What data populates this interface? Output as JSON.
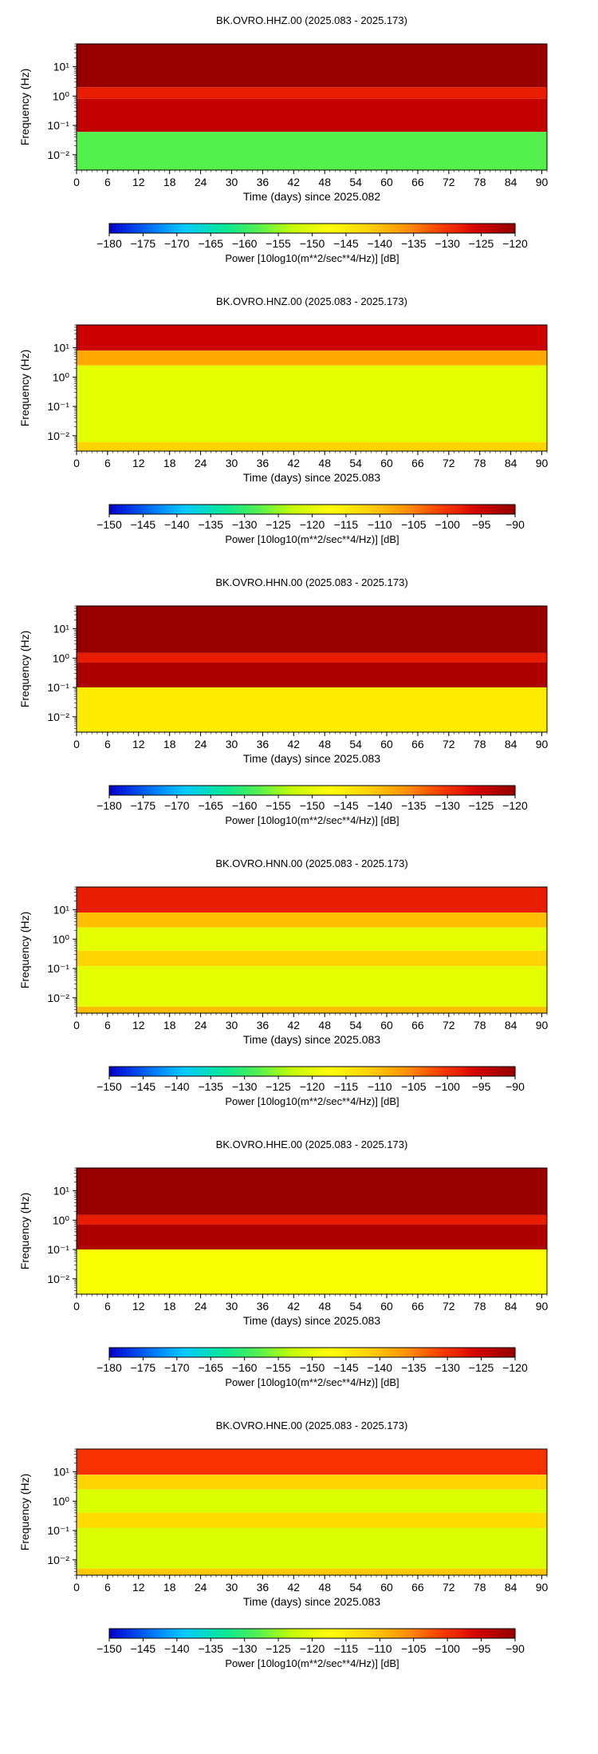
{
  "chart_data": [
    {
      "type": "heatmap",
      "title": "BK.OVRO.HHZ.00 (2025.083 - 2025.173)",
      "xlabel": "Time (days) since 2025.082",
      "ylabel": "Frequency (Hz)",
      "x_ticks": [
        0,
        6,
        12,
        18,
        24,
        30,
        36,
        42,
        48,
        54,
        60,
        66,
        72,
        78,
        84,
        90
      ],
      "xlim": [
        0,
        91
      ],
      "y_scale": "log",
      "ylim": [
        0.003,
        60
      ],
      "y_ticks": [
        {
          "value": 0.01,
          "label": "10⁻²"
        },
        {
          "value": 0.1,
          "label": "10⁻¹"
        },
        {
          "value": 1,
          "label": "10⁰"
        },
        {
          "value": 10,
          "label": "10¹"
        }
      ],
      "colorbar": {
        "label": "Power [10log10(m**2/sec**4/Hz)] [dB]",
        "min": -180,
        "max": -120,
        "ticks": [
          -180,
          -175,
          -170,
          -165,
          -160,
          -155,
          -150,
          -145,
          -140,
          -135,
          -130,
          -125,
          -120
        ]
      },
      "colormap": [
        "#0000c8",
        "#0064ff",
        "#00c8ff",
        "#00e6a0",
        "#50f050",
        "#c8ff00",
        "#ffff00",
        "#ffd200",
        "#ff9600",
        "#ff3c00",
        "#d20000",
        "#960000"
      ],
      "bands": [
        {
          "f_from": 60,
          "f_to": 2.0,
          "value": -120
        },
        {
          "f_from": 2.0,
          "f_to": 0.8,
          "value": -128
        },
        {
          "f_from": 0.8,
          "f_to": 0.06,
          "value": -124
        },
        {
          "f_from": 0.06,
          "f_to": 0.003,
          "value": -158
        }
      ]
    },
    {
      "type": "heatmap",
      "title": "BK.OVRO.HNZ.00 (2025.083 - 2025.173)",
      "xlabel": "Time (days) since 2025.083",
      "ylabel": "Frequency (Hz)",
      "x_ticks": [
        0,
        6,
        12,
        18,
        24,
        30,
        36,
        42,
        48,
        54,
        60,
        66,
        72,
        78,
        84,
        90
      ],
      "xlim": [
        0,
        91
      ],
      "y_scale": "log",
      "ylim": [
        0.003,
        60
      ],
      "y_ticks": [
        {
          "value": 0.01,
          "label": "10⁻²"
        },
        {
          "value": 0.1,
          "label": "10⁻¹"
        },
        {
          "value": 1,
          "label": "10⁰"
        },
        {
          "value": 10,
          "label": "10¹"
        }
      ],
      "colorbar": {
        "label": "Power [10log10(m**2/sec**4/Hz)] [dB]",
        "min": -150,
        "max": -90,
        "ticks": [
          -150,
          -145,
          -140,
          -135,
          -130,
          -125,
          -120,
          -115,
          -110,
          -105,
          -100,
          -95,
          -90
        ]
      },
      "colormap": [
        "#0000c8",
        "#0064ff",
        "#00c8ff",
        "#00e6a0",
        "#50f050",
        "#c8ff00",
        "#ffff00",
        "#ffd200",
        "#ff9600",
        "#ff3c00",
        "#d20000",
        "#960000"
      ],
      "bands": [
        {
          "f_from": 60,
          "f_to": 8,
          "value": -95
        },
        {
          "f_from": 8,
          "f_to": 2.5,
          "value": -108
        },
        {
          "f_from": 2.5,
          "f_to": 0.006,
          "value": -120
        },
        {
          "f_from": 0.006,
          "f_to": 0.003,
          "value": -112
        }
      ]
    },
    {
      "type": "heatmap",
      "title": "BK.OVRO.HHN.00 (2025.083 - 2025.173)",
      "xlabel": "Time (days) since 2025.083",
      "ylabel": "Frequency (Hz)",
      "x_ticks": [
        0,
        6,
        12,
        18,
        24,
        30,
        36,
        42,
        48,
        54,
        60,
        66,
        72,
        78,
        84,
        90
      ],
      "xlim": [
        0,
        91
      ],
      "y_scale": "log",
      "ylim": [
        0.003,
        60
      ],
      "y_ticks": [
        {
          "value": 0.01,
          "label": "10⁻²"
        },
        {
          "value": 0.1,
          "label": "10⁻¹"
        },
        {
          "value": 1,
          "label": "10⁰"
        },
        {
          "value": 10,
          "label": "10¹"
        }
      ],
      "colorbar": {
        "label": "Power [10log10(m**2/sec**4/Hz)] [dB]",
        "min": -180,
        "max": -120,
        "ticks": [
          -180,
          -175,
          -170,
          -165,
          -160,
          -155,
          -150,
          -145,
          -140,
          -135,
          -130,
          -125,
          -120
        ]
      },
      "colormap": [
        "#0000c8",
        "#0064ff",
        "#00c8ff",
        "#00e6a0",
        "#50f050",
        "#c8ff00",
        "#ffff00",
        "#ffd200",
        "#ff9600",
        "#ff3c00",
        "#d20000",
        "#960000"
      ],
      "bands": [
        {
          "f_from": 60,
          "f_to": 1.5,
          "value": -120
        },
        {
          "f_from": 1.5,
          "f_to": 0.7,
          "value": -128
        },
        {
          "f_from": 0.7,
          "f_to": 0.1,
          "value": -122
        },
        {
          "f_from": 0.1,
          "f_to": 0.003,
          "value": -145
        }
      ]
    },
    {
      "type": "heatmap",
      "title": "BK.OVRO.HNN.00 (2025.083 - 2025.173)",
      "xlabel": "Time (days) since 2025.083",
      "ylabel": "Frequency (Hz)",
      "x_ticks": [
        0,
        6,
        12,
        18,
        24,
        30,
        36,
        42,
        48,
        54,
        60,
        66,
        72,
        78,
        84,
        90
      ],
      "xlim": [
        0,
        91
      ],
      "y_scale": "log",
      "ylim": [
        0.003,
        60
      ],
      "y_ticks": [
        {
          "value": 0.01,
          "label": "10⁻²"
        },
        {
          "value": 0.1,
          "label": "10⁻¹"
        },
        {
          "value": 1,
          "label": "10⁰"
        },
        {
          "value": 10,
          "label": "10¹"
        }
      ],
      "colorbar": {
        "label": "Power [10log10(m**2/sec**4/Hz)] [dB]",
        "min": -150,
        "max": -90,
        "ticks": [
          -150,
          -145,
          -140,
          -135,
          -130,
          -125,
          -120,
          -115,
          -110,
          -105,
          -100,
          -95,
          -90
        ]
      },
      "colormap": [
        "#0000c8",
        "#0064ff",
        "#00c8ff",
        "#00e6a0",
        "#50f050",
        "#c8ff00",
        "#ffff00",
        "#ffd200",
        "#ff9600",
        "#ff3c00",
        "#d20000",
        "#960000"
      ],
      "bands": [
        {
          "f_from": 60,
          "f_to": 8,
          "value": -98
        },
        {
          "f_from": 8,
          "f_to": 2.5,
          "value": -110
        },
        {
          "f_from": 2.5,
          "f_to": 0.4,
          "value": -120
        },
        {
          "f_from": 0.4,
          "f_to": 0.12,
          "value": -112
        },
        {
          "f_from": 0.12,
          "f_to": 0.005,
          "value": -120
        },
        {
          "f_from": 0.005,
          "f_to": 0.003,
          "value": -110
        }
      ]
    },
    {
      "type": "heatmap",
      "title": "BK.OVRO.HHE.00 (2025.083 - 2025.173)",
      "xlabel": "Time (days) since 2025.083",
      "ylabel": "Frequency (Hz)",
      "x_ticks": [
        0,
        6,
        12,
        18,
        24,
        30,
        36,
        42,
        48,
        54,
        60,
        66,
        72,
        78,
        84,
        90
      ],
      "xlim": [
        0,
        91
      ],
      "y_scale": "log",
      "ylim": [
        0.003,
        60
      ],
      "y_ticks": [
        {
          "value": 0.01,
          "label": "10⁻²"
        },
        {
          "value": 0.1,
          "label": "10⁻¹"
        },
        {
          "value": 1,
          "label": "10⁰"
        },
        {
          "value": 10,
          "label": "10¹"
        }
      ],
      "colorbar": {
        "label": "Power [10log10(m**2/sec**4/Hz)] [dB]",
        "min": -180,
        "max": -120,
        "ticks": [
          -180,
          -175,
          -170,
          -165,
          -160,
          -155,
          -150,
          -145,
          -140,
          -135,
          -130,
          -125,
          -120
        ]
      },
      "colormap": [
        "#0000c8",
        "#0064ff",
        "#00c8ff",
        "#00e6a0",
        "#50f050",
        "#c8ff00",
        "#ffff00",
        "#ffd200",
        "#ff9600",
        "#ff3c00",
        "#d20000",
        "#960000"
      ],
      "bands": [
        {
          "f_from": 60,
          "f_to": 1.5,
          "value": -120
        },
        {
          "f_from": 1.5,
          "f_to": 0.7,
          "value": -128
        },
        {
          "f_from": 0.7,
          "f_to": 0.1,
          "value": -122
        },
        {
          "f_from": 0.1,
          "f_to": 0.003,
          "value": -148
        }
      ]
    },
    {
      "type": "heatmap",
      "title": "BK.OVRO.HNE.00 (2025.083 - 2025.173)",
      "xlabel": "Time (days) since 2025.083",
      "ylabel": "Frequency (Hz)",
      "x_ticks": [
        0,
        6,
        12,
        18,
        24,
        30,
        36,
        42,
        48,
        54,
        60,
        66,
        72,
        78,
        84,
        90
      ],
      "xlim": [
        0,
        91
      ],
      "y_scale": "log",
      "ylim": [
        0.003,
        60
      ],
      "y_ticks": [
        {
          "value": 0.01,
          "label": "10⁻²"
        },
        {
          "value": 0.1,
          "label": "10⁻¹"
        },
        {
          "value": 1,
          "label": "10⁰"
        },
        {
          "value": 10,
          "label": "10¹"
        }
      ],
      "colorbar": {
        "label": "Power [10log10(m**2/sec**4/Hz)] [dB]",
        "min": -150,
        "max": -90,
        "ticks": [
          -150,
          -145,
          -140,
          -135,
          -130,
          -125,
          -120,
          -115,
          -110,
          -105,
          -100,
          -95,
          -90
        ]
      },
      "colormap": [
        "#0000c8",
        "#0064ff",
        "#00c8ff",
        "#00e6a0",
        "#50f050",
        "#c8ff00",
        "#ffff00",
        "#ffd200",
        "#ff9600",
        "#ff3c00",
        "#d20000",
        "#960000"
      ],
      "bands": [
        {
          "f_from": 60,
          "f_to": 8,
          "value": -100
        },
        {
          "f_from": 8,
          "f_to": 2.5,
          "value": -112
        },
        {
          "f_from": 2.5,
          "f_to": 0.4,
          "value": -121
        },
        {
          "f_from": 0.4,
          "f_to": 0.12,
          "value": -113
        },
        {
          "f_from": 0.12,
          "f_to": 0.005,
          "value": -121
        },
        {
          "f_from": 0.005,
          "f_to": 0.003,
          "value": -111
        }
      ]
    }
  ]
}
